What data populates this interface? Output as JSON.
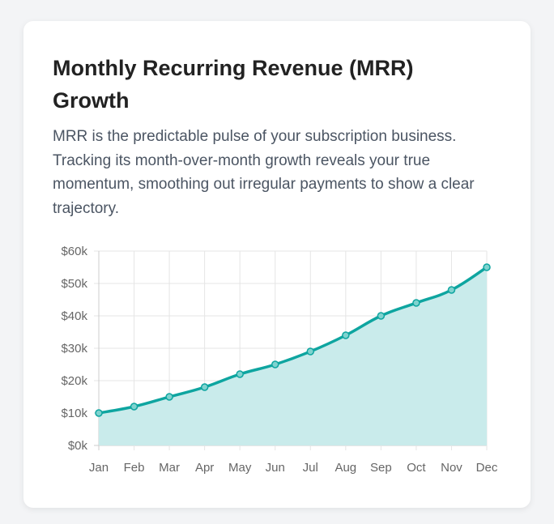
{
  "card": {
    "title": "Monthly Recurring Revenue (MRR) Growth",
    "description": "MRR is the predictable pulse of your subscription business. Tracking its month-over-month growth reveals your true momentum, smoothing out irregular payments to show a clear trajectory."
  },
  "chart_data": {
    "type": "area",
    "title": "",
    "xlabel": "",
    "ylabel": "",
    "categories": [
      "Jan",
      "Feb",
      "Mar",
      "Apr",
      "May",
      "Jun",
      "Jul",
      "Aug",
      "Sep",
      "Oct",
      "Nov",
      "Dec"
    ],
    "series": [
      {
        "name": "MRR",
        "values": [
          10000,
          12000,
          15000,
          18000,
          22000,
          25000,
          29000,
          34000,
          40000,
          44000,
          48000,
          55000
        ]
      }
    ],
    "ylim": [
      0,
      60000
    ],
    "yticks": [
      0,
      10000,
      20000,
      30000,
      40000,
      50000,
      60000
    ],
    "ytick_labels": [
      "$0k",
      "$10k",
      "$20k",
      "$30k",
      "$40k",
      "$50k",
      "$60k"
    ],
    "grid": true,
    "legend": "none",
    "colors": {
      "line": "#0ea5a0",
      "fill": "#c9ebeb",
      "grid": "#e5e5e5"
    }
  }
}
